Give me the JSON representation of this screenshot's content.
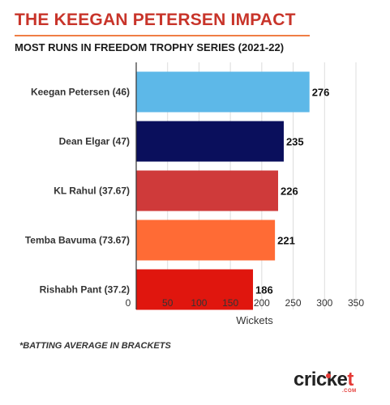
{
  "header": {
    "title": "THE KEEGAN PETERSEN IMPACT",
    "subtitle": "MOST RUNS IN FREEDOM TROPHY SERIES (2021-22)"
  },
  "footnote": "*BATTING AVERAGE IN BRACKETS",
  "logo": {
    "main": "cricket",
    "accent": "t",
    "sub": ".COM"
  },
  "chart_data": {
    "type": "bar",
    "orientation": "horizontal",
    "categories": [
      "Keegan Petersen (46)",
      "Dean Elgar (47)",
      "KL Rahul (37.67)",
      "Temba Bavuma (73.67)",
      "Rishabh Pant (37.2)"
    ],
    "values": [
      276,
      235,
      226,
      221,
      186
    ],
    "colors": [
      "#5db8e8",
      "#0a0f5c",
      "#cf3a3a",
      "#ff6b35",
      "#e0160e"
    ],
    "xlabel": "Wickets",
    "ylabel": "",
    "xlim": [
      0,
      350
    ],
    "xticks": [
      0,
      50,
      100,
      150,
      200,
      250,
      300,
      350
    ],
    "grid": true,
    "data_labels": true
  }
}
